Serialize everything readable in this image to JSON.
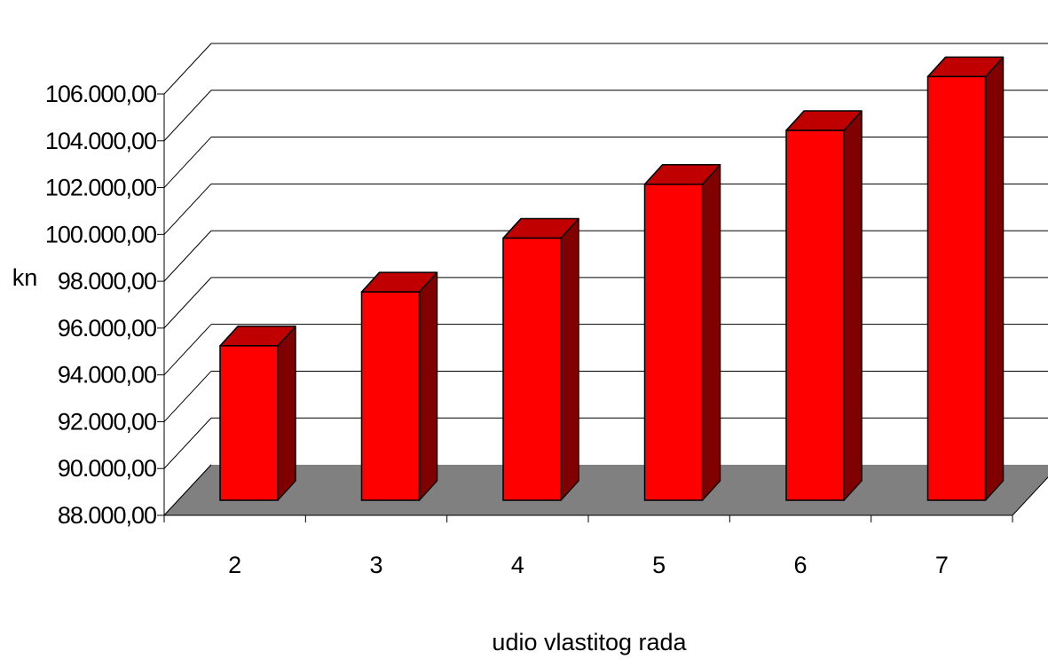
{
  "chart_data": {
    "type": "bar",
    "title": "",
    "xlabel": "udio vlastitog rada",
    "ylabel": "kn",
    "categories": [
      "2",
      "3",
      "4",
      "5",
      "6",
      "7"
    ],
    "series": [
      {
        "values": [
          94600,
          96900,
          99200,
          101500,
          103800,
          106100
        ]
      }
    ],
    "ylim": [
      88000,
      106000
    ],
    "yticks": [
      88000,
      90000,
      92000,
      94000,
      96000,
      98000,
      100000,
      102000,
      104000,
      106000
    ],
    "ytick_labels": [
      "88.000,00",
      "90.000,00",
      "92.000,00",
      "94.000,00",
      "96.000,00",
      "98.000,00",
      "100.000,00",
      "102.000,00",
      "104.000,00",
      "106.000,00"
    ],
    "grid": true,
    "legend": "none",
    "style": "3d-column",
    "colors": {
      "bar_front": "#ff0000",
      "bar_top": "#c00000",
      "bar_side": "#800000",
      "floor": "#808080",
      "gridline": "#000000"
    }
  }
}
